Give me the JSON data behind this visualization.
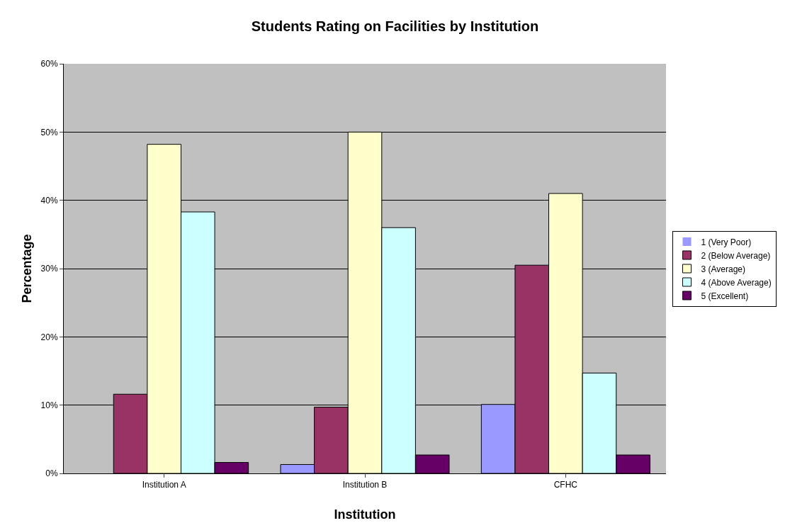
{
  "chart_data": {
    "type": "bar",
    "title": "Students Rating on Facilities by Institution",
    "xlabel": "Institution",
    "ylabel": "Percentage",
    "categories": [
      "Institution A",
      "Institution B",
      "CFHC"
    ],
    "series": [
      {
        "name": "1 (Very Poor)",
        "color": "#9999ff",
        "values": [
          0,
          1.3,
          10.1
        ]
      },
      {
        "name": "2 (Below Average)",
        "color": "#993366",
        "values": [
          11.6,
          9.7,
          30.5
        ]
      },
      {
        "name": "3 (Average)",
        "color": "#ffffcc",
        "values": [
          48.2,
          50,
          41
        ]
      },
      {
        "name": "4 (Above Average)",
        "color": "#ccffff",
        "values": [
          38.3,
          36,
          14.7
        ]
      },
      {
        "name": "5 (Excellent)",
        "color": "#660066",
        "values": [
          1.6,
          2.7,
          2.7
        ]
      }
    ],
    "ylim": [
      0,
      60
    ],
    "yticks": [
      {
        "value": 0,
        "label": "0%"
      },
      {
        "value": 10,
        "label": "10%"
      },
      {
        "value": 20,
        "label": "20%"
      },
      {
        "value": 30,
        "label": "30%"
      },
      {
        "value": 40,
        "label": "40%"
      },
      {
        "value": 50,
        "label": "50%"
      },
      {
        "value": 60,
        "label": "60%"
      }
    ],
    "grid": "y",
    "legend": "right"
  }
}
